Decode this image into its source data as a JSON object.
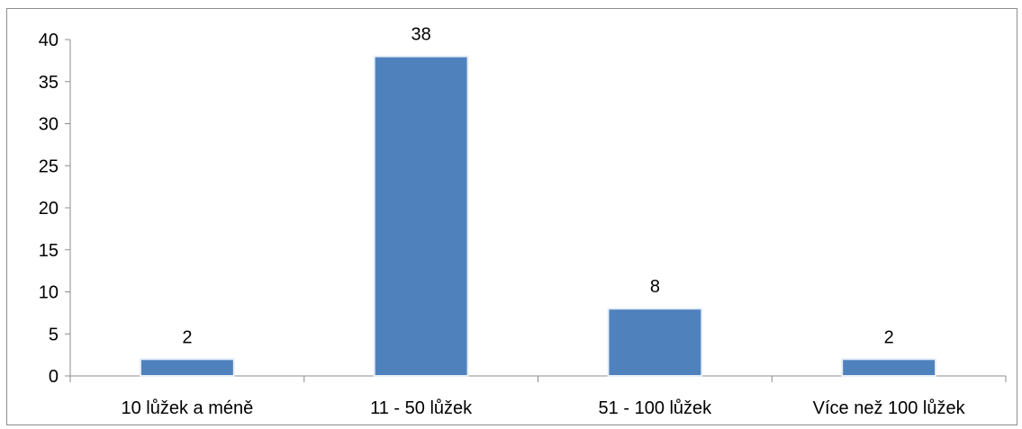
{
  "chart_data": {
    "type": "bar",
    "title": "",
    "xlabel": "",
    "ylabel": "",
    "categories": [
      "10 lůžek a méně",
      "11 - 50 lůžek",
      "51 - 100 lůžek",
      "Více než 100 lůžek"
    ],
    "values": [
      2,
      38,
      8,
      2
    ],
    "data_labels": [
      "2",
      "38",
      "8",
      "2"
    ],
    "ylim": [
      0,
      40
    ],
    "yticks": [
      0,
      5,
      10,
      15,
      20,
      25,
      30,
      35,
      40
    ],
    "ytick_labels": [
      "0",
      "5",
      "10",
      "15",
      "20",
      "25",
      "30",
      "35",
      "40"
    ],
    "grid": false,
    "legend": "none",
    "colors": {
      "bar_fill": "#4f81bd",
      "bar_edge": "#e6eef8",
      "axis": "#8c8c8c",
      "text": "#000000"
    }
  }
}
